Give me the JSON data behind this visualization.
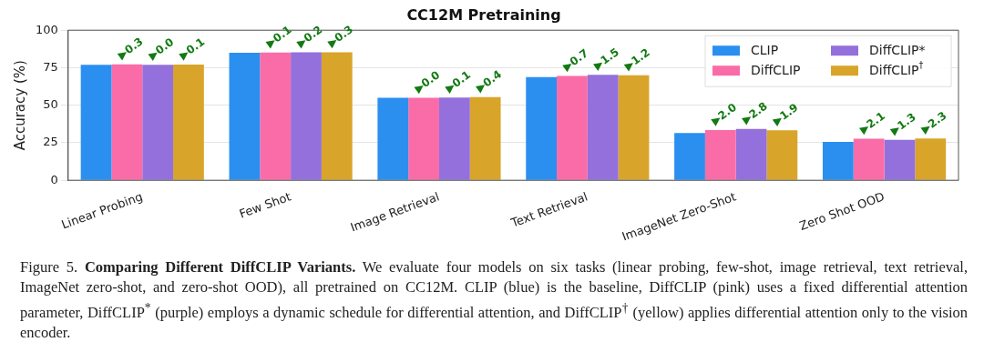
{
  "chart_data": {
    "type": "bar",
    "title": "CC12M Pretraining",
    "ylabel": "Accuracy (%)",
    "categories": [
      "Linear Probing",
      "Few Shot",
      "Image Retrieval",
      "Text Retrieval",
      "ImageNet Zero-Shot",
      "Zero Shot OOD"
    ],
    "series": [
      {
        "name": "CLIP",
        "color": "#2b8ff0",
        "values": [
          77.0,
          85.0,
          55.0,
          68.8,
          31.4,
          25.6
        ]
      },
      {
        "name": "DiffCLIP",
        "color": "#fa6ca8",
        "values": [
          77.3,
          85.1,
          55.0,
          69.5,
          33.4,
          27.7
        ]
      },
      {
        "name": "DiffCLIP*",
        "color": "#9370db",
        "values": [
          77.0,
          85.2,
          55.1,
          70.3,
          34.2,
          26.9
        ]
      },
      {
        "name": "DiffCLIP$^{†}$",
        "color": "#d9a42a",
        "values": [
          77.1,
          85.3,
          55.4,
          70.0,
          33.3,
          27.9
        ]
      }
    ],
    "ylim": [
      0,
      100
    ],
    "yticks": [
      0,
      25,
      50,
      75,
      100
    ],
    "grid": "y",
    "legend": "top right",
    "annotations": [
      "Figure 5.",
      "Comparing Different DiffCLIP Variants.",
      "We evaluate four models on six tasks (linear probing, few-shot, image retrieval, text retrieval, ImageNet zero-shot, and zero-shot OOD), all pretrained on CC12M. CLIP (blue) is the baseline, DiffCLIP (pink) uses a fixed differential attention parameter, DiffCLIP$^{*}$ (purple) employs a dynamic schedule for differential attention, and DiffCLIP$^{†}$ (yellow) applies differential attention only to the vision encoder.",
      "▶0.3",
      "▶0.0",
      "▶0.1",
      "▶0.1",
      "▶0.2",
      "▶0.3",
      "▶0.0",
      "▶0.1",
      "▶0.4",
      "▶0.7",
      "▶1.5",
      "▶1.2",
      "▶2.0",
      "▶2.8",
      "▶1.9",
      "▶2.1",
      "▶1.3",
      "▶2.3"
    ]
  }
}
